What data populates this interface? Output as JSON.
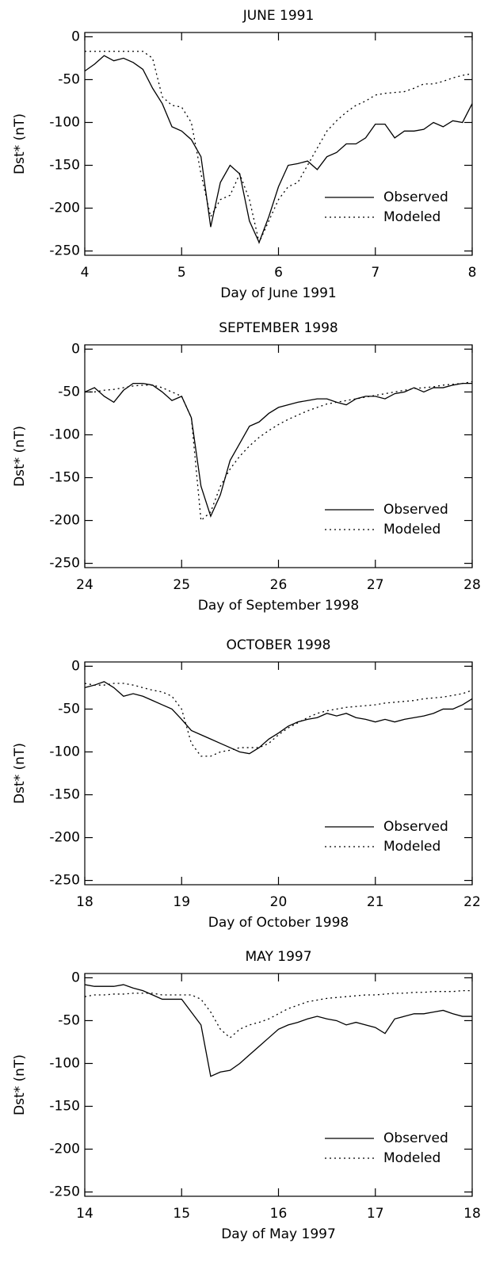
{
  "chart_data": [
    {
      "type": "line",
      "title": "JUNE 1991",
      "xlabel": "Day of June 1991",
      "ylabel": "Dst* (nT)",
      "xlim": [
        4,
        8
      ],
      "xticks": [
        4,
        5,
        6,
        7,
        8
      ],
      "ylim": [
        -255,
        5
      ],
      "yticks": [
        0,
        -50,
        -100,
        -150,
        -200,
        -250
      ],
      "legend": "lower right",
      "x": [
        4.0,
        4.1,
        4.2,
        4.3,
        4.4,
        4.5,
        4.6,
        4.7,
        4.8,
        4.9,
        5.0,
        5.1,
        5.2,
        5.3,
        5.4,
        5.5,
        5.6,
        5.7,
        5.8,
        5.9,
        6.0,
        6.1,
        6.2,
        6.3,
        6.4,
        6.5,
        6.6,
        6.7,
        6.8,
        6.9,
        7.0,
        7.1,
        7.2,
        7.3,
        7.4,
        7.5,
        7.6,
        7.7,
        7.8,
        7.9,
        8.0
      ],
      "series": [
        {
          "name": "Observed",
          "color": "#000000",
          "style": "solid",
          "values": [
            -40,
            -32,
            -22,
            -28,
            -25,
            -30,
            -38,
            -60,
            -78,
            -105,
            -110,
            -120,
            -140,
            -222,
            -170,
            -150,
            -160,
            -215,
            -240,
            -210,
            -175,
            -150,
            -148,
            -145,
            -155,
            -140,
            -135,
            -125,
            -125,
            -118,
            -102,
            -102,
            -118,
            -110,
            -110,
            -108,
            -100,
            -105,
            -98,
            -100,
            -78
          ]
        },
        {
          "name": "Modeled",
          "color": "#000000",
          "style": "dotted",
          "values": [
            -17,
            -17,
            -17,
            -17,
            -17,
            -17,
            -17,
            -25,
            -70,
            -80,
            -82,
            -100,
            -160,
            -210,
            -190,
            -185,
            -160,
            -190,
            -240,
            -215,
            -190,
            -175,
            -170,
            -150,
            -130,
            -110,
            -98,
            -88,
            -80,
            -75,
            -68,
            -66,
            -65,
            -64,
            -60,
            -55,
            -55,
            -52,
            -48,
            -45,
            -43
          ]
        }
      ]
    },
    {
      "type": "line",
      "title": "SEPTEMBER 1998",
      "xlabel": "Day of September 1998",
      "ylabel": "Dst* (nT)",
      "xlim": [
        24,
        28
      ],
      "xticks": [
        24,
        25,
        26,
        27,
        28
      ],
      "ylim": [
        -255,
        5
      ],
      "yticks": [
        0,
        -50,
        -100,
        -150,
        -200,
        -250
      ],
      "legend": "lower right",
      "x": [
        24.0,
        24.1,
        24.2,
        24.3,
        24.4,
        24.5,
        24.6,
        24.7,
        24.8,
        24.9,
        25.0,
        25.1,
        25.2,
        25.3,
        25.4,
        25.5,
        25.6,
        25.7,
        25.8,
        25.9,
        26.0,
        26.1,
        26.2,
        26.3,
        26.4,
        26.5,
        26.6,
        26.7,
        26.8,
        26.9,
        27.0,
        27.1,
        27.2,
        27.3,
        27.4,
        27.5,
        27.6,
        27.7,
        27.8,
        27.9,
        28.0
      ],
      "series": [
        {
          "name": "Observed",
          "color": "#000000",
          "style": "solid",
          "values": [
            -50,
            -45,
            -55,
            -62,
            -48,
            -40,
            -40,
            -42,
            -50,
            -60,
            -55,
            -80,
            -160,
            -195,
            -170,
            -130,
            -110,
            -90,
            -85,
            -75,
            -68,
            -65,
            -62,
            -60,
            -58,
            -58,
            -62,
            -65,
            -58,
            -55,
            -55,
            -58,
            -52,
            -50,
            -45,
            -50,
            -45,
            -45,
            -42,
            -40,
            -40
          ]
        },
        {
          "name": "Modeled",
          "color": "#000000",
          "style": "dotted",
          "values": [
            -50,
            -50,
            -48,
            -47,
            -45,
            -43,
            -42,
            -42,
            -45,
            -50,
            -55,
            -80,
            -200,
            -190,
            -160,
            -140,
            -125,
            -113,
            -103,
            -95,
            -88,
            -82,
            -77,
            -72,
            -68,
            -64,
            -62,
            -60,
            -58,
            -56,
            -54,
            -52,
            -50,
            -48,
            -46,
            -45,
            -44,
            -42,
            -41,
            -40,
            -38
          ]
        }
      ]
    },
    {
      "type": "line",
      "title": "OCTOBER 1998",
      "xlabel": "Day of October 1998",
      "ylabel": "Dst* (nT)",
      "xlim": [
        18,
        22
      ],
      "xticks": [
        18,
        19,
        20,
        21,
        22
      ],
      "ylim": [
        -255,
        5
      ],
      "yticks": [
        0,
        -50,
        -100,
        -150,
        -200,
        -250
      ],
      "legend": "lower right",
      "x": [
        18.0,
        18.1,
        18.2,
        18.3,
        18.4,
        18.5,
        18.6,
        18.7,
        18.8,
        18.9,
        19.0,
        19.1,
        19.2,
        19.3,
        19.4,
        19.5,
        19.6,
        19.7,
        19.8,
        19.9,
        20.0,
        20.1,
        20.2,
        20.3,
        20.4,
        20.5,
        20.6,
        20.7,
        20.8,
        20.9,
        21.0,
        21.1,
        21.2,
        21.3,
        21.4,
        21.5,
        21.6,
        21.7,
        21.8,
        21.9,
        22.0
      ],
      "series": [
        {
          "name": "Observed",
          "color": "#000000",
          "style": "solid",
          "values": [
            -25,
            -22,
            -18,
            -25,
            -35,
            -32,
            -35,
            -40,
            -45,
            -50,
            -62,
            -75,
            -80,
            -85,
            -90,
            -95,
            -100,
            -102,
            -95,
            -85,
            -78,
            -70,
            -65,
            -62,
            -60,
            -55,
            -58,
            -55,
            -60,
            -62,
            -65,
            -62,
            -65,
            -62,
            -60,
            -58,
            -55,
            -50,
            -50,
            -45,
            -38
          ]
        },
        {
          "name": "Modeled",
          "color": "#000000",
          "style": "dotted",
          "values": [
            -20,
            -22,
            -22,
            -20,
            -20,
            -22,
            -25,
            -28,
            -30,
            -35,
            -50,
            -90,
            -105,
            -105,
            -100,
            -98,
            -95,
            -95,
            -95,
            -90,
            -80,
            -72,
            -66,
            -60,
            -55,
            -52,
            -50,
            -48,
            -47,
            -46,
            -45,
            -43,
            -42,
            -41,
            -40,
            -38,
            -37,
            -36,
            -34,
            -32,
            -28
          ]
        }
      ]
    },
    {
      "type": "line",
      "title": "MAY 1997",
      "xlabel": "Day of May 1997",
      "ylabel": "Dst* (nT)",
      "xlim": [
        14,
        18
      ],
      "xticks": [
        14,
        15,
        16,
        17,
        18
      ],
      "ylim": [
        -255,
        5
      ],
      "yticks": [
        0,
        -50,
        -100,
        -150,
        -200,
        -250
      ],
      "legend": "lower right",
      "x": [
        14.0,
        14.1,
        14.2,
        14.3,
        14.4,
        14.5,
        14.6,
        14.7,
        14.8,
        14.9,
        15.0,
        15.1,
        15.2,
        15.3,
        15.4,
        15.5,
        15.6,
        15.7,
        15.8,
        15.9,
        16.0,
        16.1,
        16.2,
        16.3,
        16.4,
        16.5,
        16.6,
        16.7,
        16.8,
        16.9,
        17.0,
        17.1,
        17.2,
        17.3,
        17.4,
        17.5,
        17.6,
        17.7,
        17.8,
        17.9,
        18.0
      ],
      "series": [
        {
          "name": "Observed",
          "color": "#000000",
          "style": "solid",
          "values": [
            -8,
            -10,
            -10,
            -10,
            -8,
            -12,
            -15,
            -20,
            -25,
            -25,
            -25,
            -40,
            -55,
            -115,
            -110,
            -108,
            -100,
            -90,
            -80,
            -70,
            -60,
            -55,
            -52,
            -48,
            -45,
            -48,
            -50,
            -55,
            -52,
            -55,
            -58,
            -65,
            -48,
            -45,
            -42,
            -42,
            -40,
            -38,
            -42,
            -45,
            -45
          ]
        },
        {
          "name": "Modeled",
          "color": "#000000",
          "style": "dotted",
          "values": [
            -22,
            -20,
            -20,
            -19,
            -19,
            -18,
            -18,
            -18,
            -20,
            -20,
            -20,
            -20,
            -25,
            -40,
            -60,
            -70,
            -60,
            -55,
            -52,
            -48,
            -42,
            -36,
            -32,
            -28,
            -26,
            -24,
            -23,
            -22,
            -21,
            -20,
            -20,
            -19,
            -18,
            -18,
            -17,
            -17,
            -16,
            -16,
            -16,
            -15,
            -15
          ]
        }
      ]
    }
  ]
}
